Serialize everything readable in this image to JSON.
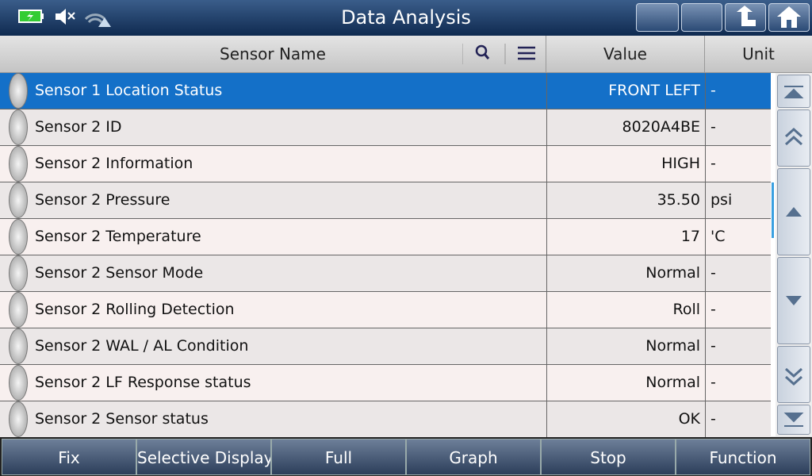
{
  "header": {
    "title": "Data Analysis"
  },
  "table": {
    "columns": [
      "Sensor Name",
      "Value",
      "Unit"
    ],
    "rows": [
      [
        "Sensor 1 Location Status",
        "FRONT LEFT",
        "-"
      ],
      [
        "Sensor 2 ID",
        "8020A4BE",
        "-"
      ],
      [
        "Sensor 2 Information",
        "HIGH",
        "-"
      ],
      [
        "Sensor 2 Pressure",
        "35.50",
        "psi"
      ],
      [
        "Sensor 2 Temperature",
        "17",
        "'C"
      ],
      [
        "Sensor 2 Sensor Mode",
        "Normal",
        "-"
      ],
      [
        "Sensor 2 Rolling Detection",
        "Roll",
        "-"
      ],
      [
        "Sensor 2 WAL / AL Condition",
        "Normal",
        "-"
      ],
      [
        "Sensor 2 LF Response status",
        "Normal",
        "-"
      ],
      [
        "Sensor 2 Sensor status",
        "OK",
        "-"
      ]
    ]
  },
  "footer": {
    "buttons": [
      "Fix",
      "Selective Display",
      "Full",
      "Graph",
      "Stop",
      "Function"
    ]
  }
}
